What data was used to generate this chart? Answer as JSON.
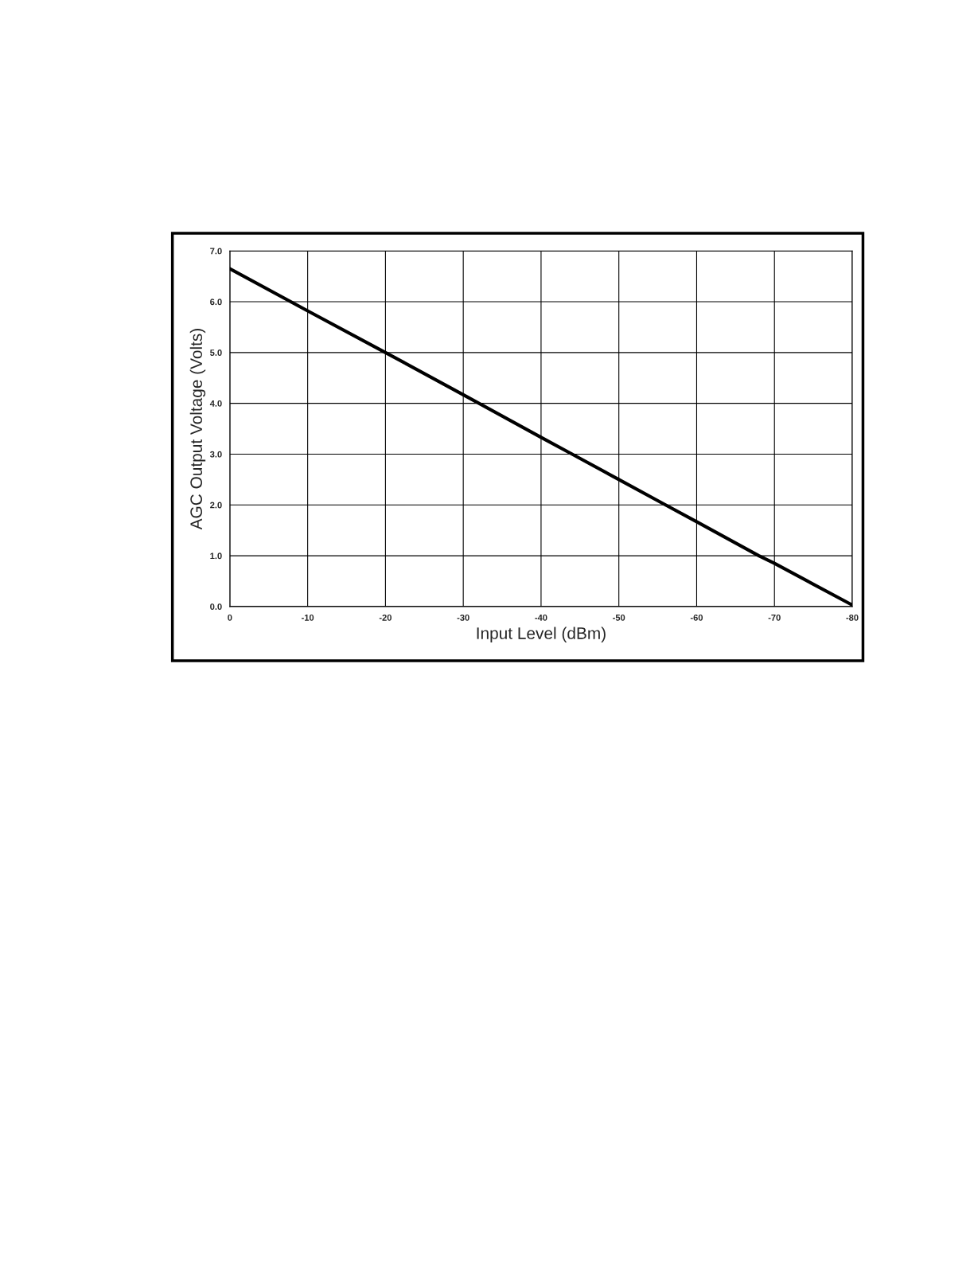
{
  "chart_data": {
    "type": "line",
    "xlabel": "Input Level (dBm)",
    "ylabel": "AGC Output Voltage (Volts)",
    "x": [
      0,
      -10,
      -20,
      -30,
      -40,
      -44,
      -50,
      -56,
      -60,
      -68,
      -70,
      -80
    ],
    "series": [
      {
        "color": "#000000",
        "values": [
          6.65,
          5.82,
          5.0,
          4.17,
          3.33,
          3.0,
          2.5,
          2.0,
          1.67,
          1.0,
          0.85,
          0.03
        ]
      }
    ],
    "xlim": [
      0,
      -80
    ],
    "xticks": [
      0,
      -10,
      -20,
      -30,
      -40,
      -50,
      -60,
      -70,
      -80
    ],
    "ylim": [
      0,
      7
    ],
    "yticks": [
      {
        "value": 0,
        "label": "0.0"
      },
      {
        "value": 1,
        "label": "1.0"
      },
      {
        "value": 2,
        "label": "2.0"
      },
      {
        "value": 3,
        "label": "3.0"
      },
      {
        "value": 4,
        "label": "4.0"
      },
      {
        "value": 5,
        "label": "5.0"
      },
      {
        "value": 6,
        "label": "6.0"
      },
      {
        "value": 7,
        "label": "7.0"
      }
    ],
    "grid": true,
    "legend": false
  }
}
